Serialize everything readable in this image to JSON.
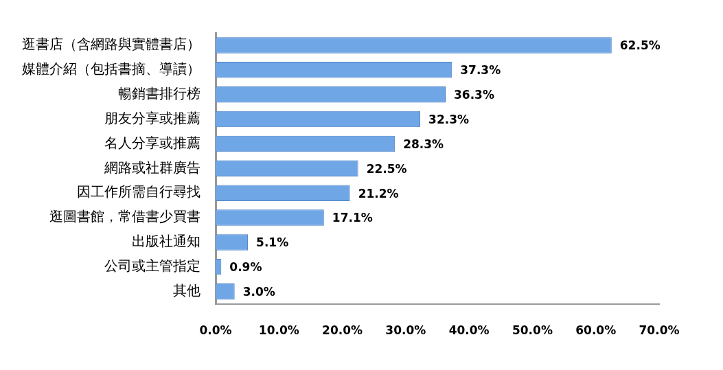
{
  "chart_data": {
    "type": "bar",
    "orientation": "horizontal",
    "categories": [
      "逛書店（含網路與實體書店）",
      "媒體介紹（包括書摘、導讀）",
      "暢銷書排行榜",
      "朋友分享或推薦",
      "名人分享或推薦",
      "網路或社群廣告",
      "因工作所需自行尋找",
      "逛圖書館，常借書少買書",
      "出版社通知",
      "公司或主管指定",
      "其他"
    ],
    "values": [
      62.5,
      37.3,
      36.3,
      32.3,
      28.3,
      22.5,
      21.2,
      17.1,
      5.1,
      0.9,
      3.0
    ],
    "value_labels": [
      "62.5%",
      "37.3%",
      "36.3%",
      "32.3%",
      "28.3%",
      "22.5%",
      "21.2%",
      "17.1%",
      "5.1%",
      "0.9%",
      "3.0%"
    ],
    "color": "#6fa6e6",
    "xlim": [
      0,
      70
    ],
    "xticks": [
      {
        "value": 0,
        "label": "0.0%"
      },
      {
        "value": 10,
        "label": "10.0%"
      },
      {
        "value": 20,
        "label": "20.0%"
      },
      {
        "value": 30,
        "label": "30.0%"
      },
      {
        "value": 40,
        "label": "40.0%"
      },
      {
        "value": 50,
        "label": "50.0%"
      },
      {
        "value": 60,
        "label": "60.0%"
      },
      {
        "value": 70,
        "label": "70.0%"
      }
    ],
    "grid": false,
    "legend": false
  }
}
